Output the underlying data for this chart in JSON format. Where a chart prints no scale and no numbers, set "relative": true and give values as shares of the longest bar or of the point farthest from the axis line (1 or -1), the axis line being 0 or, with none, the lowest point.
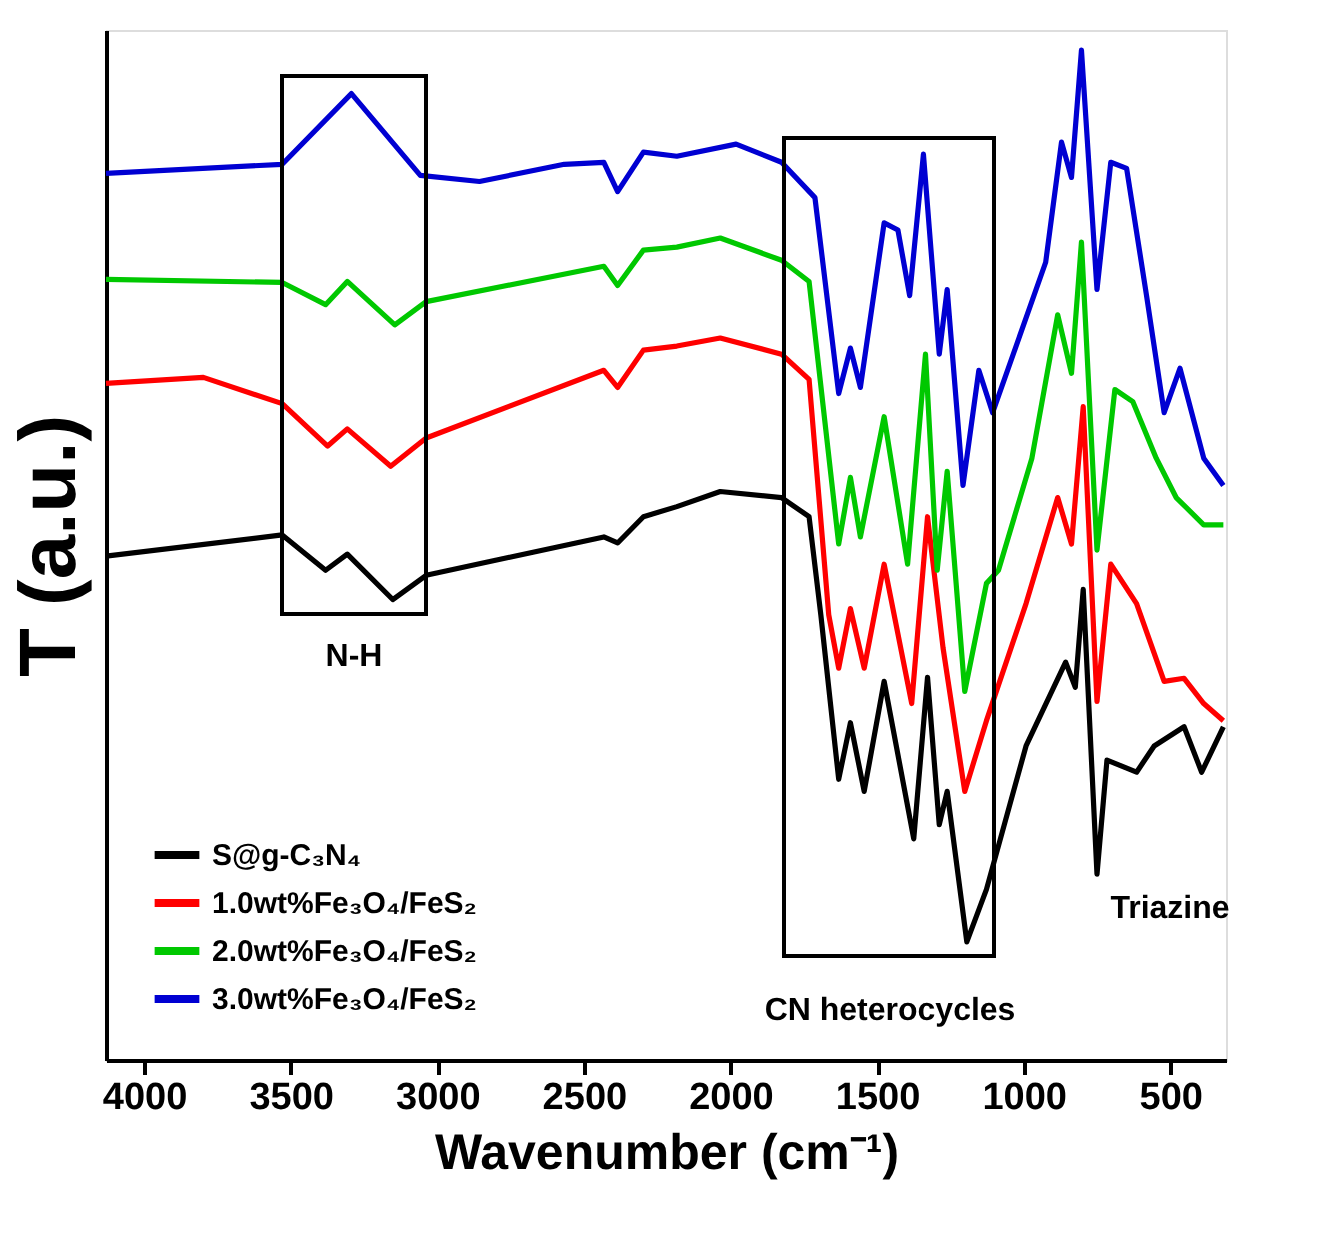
{
  "chart_data": {
    "type": "line",
    "relative": true,
    "xlabel": "Wavenumber (cm⁻¹)",
    "ylabel": "T (a.u.)",
    "xlim": [
      4130,
      310
    ],
    "xticks": [
      4000,
      3500,
      3000,
      2500,
      2000,
      1500,
      1000,
      500
    ],
    "tick_labels": "x",
    "grid": false,
    "legend": "bottom left",
    "line_style": "solid",
    "marker": "none",
    "series": [
      {
        "name": "S@g-C₃N₄",
        "color": "#000000",
        "x": [
          4130,
          3529,
          3381,
          3307,
          3152,
          3038,
          2432,
          2385,
          2297,
          2183,
          2035,
          1826,
          1732,
          1692,
          1631,
          1591,
          1544,
          1476,
          1375,
          1328,
          1288,
          1261,
          1194,
          1127,
          992,
          857,
          824,
          797,
          750,
          716,
          615,
          555,
          453,
          393,
          319
        ],
        "values": [
          0.499,
          0.52,
          0.485,
          0.501,
          0.456,
          0.48,
          0.518,
          0.512,
          0.538,
          0.548,
          0.563,
          0.557,
          0.538,
          0.441,
          0.278,
          0.334,
          0.266,
          0.375,
          0.219,
          0.379,
          0.233,
          0.266,
          0.117,
          0.169,
          0.311,
          0.394,
          0.369,
          0.466,
          0.184,
          0.297,
          0.285,
          0.311,
          0.33,
          0.285,
          0.33
        ]
      },
      {
        "name": "1.0wt%Fe₃O₄/FeS₂",
        "color": "#ff0000",
        "x": [
          4130,
          3798,
          3529,
          3374,
          3307,
          3159,
          3038,
          2432,
          2385,
          2297,
          2183,
          2035,
          1826,
          1732,
          1665,
          1631,
          1591,
          1544,
          1476,
          1382,
          1328,
          1275,
          1201,
          1127,
          992,
          884,
          837,
          797,
          750,
          703,
          615,
          521,
          453,
          386,
          319
        ],
        "values": [
          0.67,
          0.676,
          0.65,
          0.608,
          0.625,
          0.588,
          0.616,
          0.683,
          0.666,
          0.703,
          0.707,
          0.715,
          0.699,
          0.674,
          0.441,
          0.388,
          0.447,
          0.388,
          0.491,
          0.353,
          0.538,
          0.408,
          0.266,
          0.336,
          0.452,
          0.557,
          0.511,
          0.647,
          0.355,
          0.491,
          0.452,
          0.375,
          0.378,
          0.353,
          0.336
        ]
      },
      {
        "name": "2.0wt%Fe₃O₄/FeS₂",
        "color": "#00c800",
        "x": [
          4130,
          3529,
          3381,
          3307,
          3145,
          3038,
          2432,
          2385,
          2297,
          2183,
          2035,
          1826,
          1732,
          1631,
          1591,
          1557,
          1476,
          1396,
          1335,
          1295,
          1261,
          1201,
          1127,
          1086,
          972,
          884,
          837,
          803,
          750,
          689,
          628,
          548,
          480,
          386,
          319
        ],
        "values": [
          0.773,
          0.77,
          0.748,
          0.771,
          0.728,
          0.751,
          0.786,
          0.767,
          0.802,
          0.805,
          0.814,
          0.792,
          0.771,
          0.511,
          0.577,
          0.518,
          0.637,
          0.491,
          0.699,
          0.485,
          0.583,
          0.365,
          0.472,
          0.485,
          0.596,
          0.738,
          0.68,
          0.81,
          0.505,
          0.664,
          0.652,
          0.596,
          0.557,
          0.53,
          0.53
        ]
      },
      {
        "name": "3.0wt%Fe₃O₄/FeS₂",
        "color": "#0000d2",
        "x": [
          4130,
          3529,
          3293,
          3058,
          2856,
          2567,
          2432,
          2385,
          2297,
          2183,
          1981,
          1826,
          1712,
          1631,
          1591,
          1557,
          1476,
          1429,
          1389,
          1342,
          1288,
          1261,
          1207,
          1153,
          1106,
          925,
          871,
          837,
          803,
          750,
          703,
          649,
          581,
          521,
          467,
          386,
          319
        ],
        "values": [
          0.878,
          0.887,
          0.957,
          0.876,
          0.87,
          0.887,
          0.889,
          0.86,
          0.899,
          0.895,
          0.907,
          0.889,
          0.854,
          0.66,
          0.705,
          0.666,
          0.829,
          0.822,
          0.757,
          0.897,
          0.699,
          0.763,
          0.569,
          0.683,
          0.641,
          0.79,
          0.909,
          0.874,
          1.0,
          0.763,
          0.889,
          0.883,
          0.757,
          0.641,
          0.685,
          0.596,
          0.569
        ]
      }
    ],
    "annotations": [
      "N-H",
      "CN heterocycles",
      "Triazine"
    ]
  }
}
